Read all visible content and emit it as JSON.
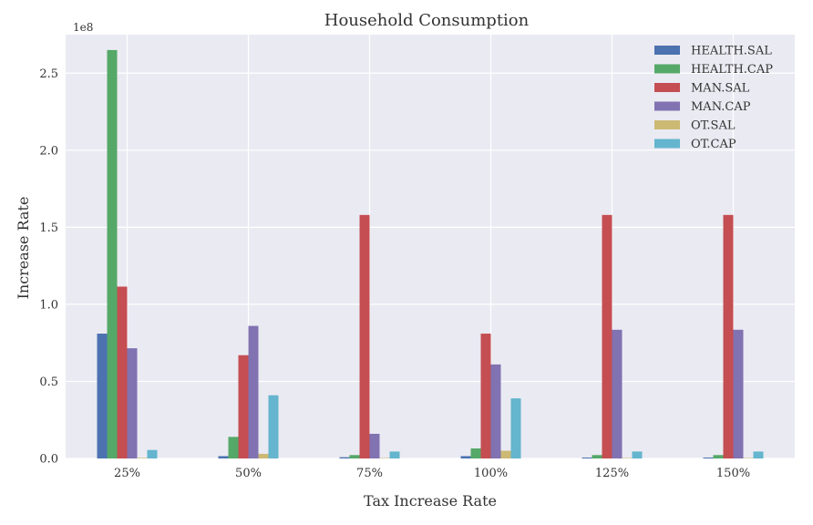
{
  "chart_data": {
    "type": "bar",
    "title": "Household Consumption",
    "xlabel": "Tax Increase Rate",
    "ylabel": "Increase Rate",
    "offset_text": "1e8",
    "categories": [
      "25%",
      "50%",
      "75%",
      "100%",
      "125%",
      "150%"
    ],
    "series": [
      {
        "name": "HEALTH.SAL",
        "color": "#4C72B0",
        "values": [
          81000000,
          1500000,
          800000,
          1500000,
          600000,
          600000
        ]
      },
      {
        "name": "HEALTH.CAP",
        "color": "#55A868",
        "values": [
          265000000,
          14000000,
          2200000,
          6500000,
          2200000,
          2200000
        ]
      },
      {
        "name": "MAN.SAL",
        "color": "#C44E52",
        "values": [
          111500000,
          67000000,
          158000000,
          81000000,
          158000000,
          158000000
        ]
      },
      {
        "name": "MAN.CAP",
        "color": "#8172B2",
        "values": [
          71500000,
          86000000,
          16000000,
          61000000,
          83500000,
          83500000
        ]
      },
      {
        "name": "OT.SAL",
        "color": "#CCB974",
        "values": [
          400000,
          3000000,
          300000,
          5000000,
          300000,
          300000
        ]
      },
      {
        "name": "OT.CAP",
        "color": "#64B5CD",
        "values": [
          5500000,
          41000000,
          4500000,
          39000000,
          4500000,
          4500000
        ]
      }
    ],
    "ylim": [
      0,
      275000000
    ],
    "yticks": [
      {
        "value": 0,
        "label": "0.0"
      },
      {
        "value": 50000000,
        "label": "0.5"
      },
      {
        "value": 100000000,
        "label": "1.0"
      },
      {
        "value": 150000000,
        "label": "1.5"
      },
      {
        "value": 200000000,
        "label": "2.0"
      },
      {
        "value": 250000000,
        "label": "2.5"
      }
    ],
    "grid": true,
    "legend_position": "top-right"
  }
}
